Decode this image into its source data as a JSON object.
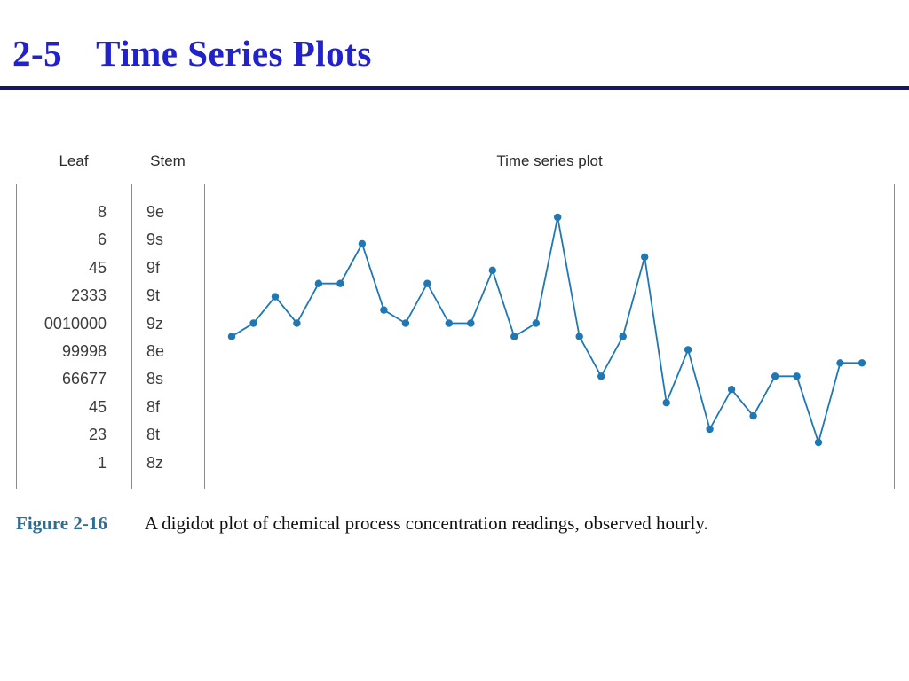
{
  "slide": {
    "section_number": "2-5",
    "title": "Time Series Plots",
    "title_color": "#2222cc",
    "divider_color": "#15156b"
  },
  "figure": {
    "leaf_header": "Leaf",
    "stem_header": "Stem",
    "plot_header": "Time series plot",
    "rows": [
      {
        "leaf": "8",
        "stem": "9e"
      },
      {
        "leaf": "6",
        "stem": "9s"
      },
      {
        "leaf": "45",
        "stem": "9f"
      },
      {
        "leaf": "2333",
        "stem": "9t"
      },
      {
        "leaf": "0010000",
        "stem": "9z"
      },
      {
        "leaf": "99998",
        "stem": "8e"
      },
      {
        "leaf": "66677",
        "stem": "8s"
      },
      {
        "leaf": "45",
        "stem": "8f"
      },
      {
        "leaf": "23",
        "stem": "8t"
      },
      {
        "leaf": "1",
        "stem": "8z"
      }
    ],
    "caption_label": "Figure 2-16",
    "caption_label_color": "#2f6d93",
    "caption_text": "A digidot plot of chemical process concentration readings, observed hourly."
  },
  "chart_data": {
    "type": "line",
    "title": "Time series plot",
    "xlabel": "",
    "ylabel": "",
    "x": [
      1,
      2,
      3,
      4,
      5,
      6,
      7,
      8,
      9,
      10,
      11,
      12,
      13,
      14,
      15,
      16,
      17,
      18,
      19,
      20,
      21,
      22,
      23,
      24,
      25,
      26,
      27,
      28,
      29,
      30
    ],
    "values": [
      89,
      90,
      92,
      90,
      93,
      93,
      96,
      91,
      90,
      93,
      90,
      90,
      94,
      89,
      90,
      98,
      89,
      86,
      89,
      95,
      84,
      88,
      82,
      85,
      83,
      86,
      86,
      81,
      87,
      87
    ],
    "ylim": [
      80,
      100
    ],
    "grid": false,
    "axes": "frame-only, no ticks or tick labels",
    "marker": "filled-circle",
    "line_color": "#1f77b4",
    "legend": "none"
  }
}
